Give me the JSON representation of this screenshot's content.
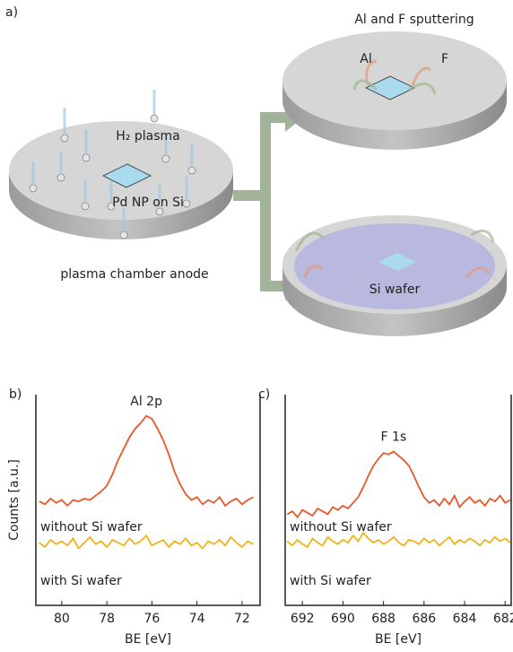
{
  "diagram": {
    "panel": "a)",
    "left_title": "H₂ plasma",
    "sample": "Pd NP on Si",
    "anode": "plasma chamber anode",
    "right_title": "Al and F sputtering",
    "al": "Al",
    "f": "F",
    "wafer": "Si wafer"
  },
  "chart_data": [
    {
      "type": "line",
      "panel": "b)",
      "annotation": "Al 2p",
      "xlabel": "BE [eV]",
      "ylabel": "Counts [a.u.]",
      "x": [
        81,
        80.75,
        80.5,
        80.25,
        80,
        79.75,
        79.5,
        79.25,
        79,
        78.75,
        78.5,
        78.25,
        78,
        77.75,
        77.5,
        77.25,
        77,
        76.75,
        76.5,
        76.25,
        76,
        75.75,
        75.5,
        75.25,
        75,
        74.75,
        74.5,
        74.25,
        74,
        73.75,
        73.5,
        73.25,
        73,
        72.75,
        72.5,
        72.25,
        72,
        71.75,
        71.5
      ],
      "series": [
        {
          "name": "without Si wafer",
          "color": "#e8572a",
          "values": [
            37,
            35,
            39,
            36,
            38,
            34,
            38,
            37,
            39,
            38,
            41,
            44,
            48,
            56,
            66,
            74,
            82,
            88,
            92,
            97,
            95,
            88,
            80,
            70,
            58,
            49,
            42,
            38,
            40,
            35,
            38,
            36,
            40,
            34,
            37,
            39,
            35,
            38,
            40
          ]
        },
        {
          "name": "with Si wafer",
          "color": "#f0b21c",
          "values": [
            8,
            5,
            10,
            7,
            9,
            6,
            11,
            4,
            8,
            12,
            7,
            9,
            5,
            10,
            8,
            6,
            11,
            7,
            9,
            13,
            6,
            8,
            10,
            5,
            9,
            7,
            11,
            6,
            8,
            4,
            9,
            7,
            10,
            6,
            12,
            8,
            5,
            9,
            7
          ]
        }
      ],
      "xlim": [
        81.15,
        71.2
      ],
      "xticks": [
        80,
        78,
        76,
        74,
        72
      ],
      "ylim": [
        -36,
        112
      ]
    },
    {
      "type": "line",
      "panel": "c)",
      "annotation": "F 1s",
      "xlabel": "BE [eV]",
      "x": [
        692.75,
        692.5,
        692.25,
        692,
        691.75,
        691.5,
        691.25,
        691,
        690.75,
        690.5,
        690.25,
        690,
        689.75,
        689.5,
        689.25,
        689,
        688.75,
        688.5,
        688.25,
        688,
        687.75,
        687.5,
        687.25,
        687,
        686.75,
        686.5,
        686.25,
        686,
        685.75,
        685.5,
        685.25,
        685,
        684.75,
        684.5,
        684.25,
        684,
        683.75,
        683.5,
        683.25,
        683,
        682.75,
        682.5,
        682.25,
        682,
        681.75
      ],
      "series": [
        {
          "name": "without Si wafer",
          "color": "#e8572a",
          "values": [
            28,
            30,
            26,
            31,
            29,
            27,
            32,
            30,
            28,
            33,
            31,
            34,
            32,
            36,
            40,
            47,
            55,
            62,
            67,
            71,
            70,
            72,
            69,
            66,
            62,
            55,
            47,
            40,
            36,
            38,
            34,
            39,
            35,
            41,
            33,
            37,
            40,
            36,
            38,
            34,
            39,
            37,
            41,
            36,
            38
          ]
        },
        {
          "name": "with Si wafer",
          "color": "#f0b21c",
          "values": [
            9,
            6,
            10,
            7,
            5,
            11,
            8,
            6,
            12,
            9,
            7,
            10,
            8,
            13,
            9,
            15,
            11,
            8,
            10,
            7,
            9,
            12,
            8,
            6,
            10,
            9,
            7,
            11,
            8,
            10,
            6,
            9,
            12,
            7,
            10,
            8,
            11,
            9,
            6,
            10,
            8,
            12,
            9,
            11,
            8
          ]
        }
      ],
      "xlim": [
        692.85,
        681.7
      ],
      "xticks": [
        692,
        690,
        688,
        686,
        684,
        682
      ],
      "ylim": [
        -36,
        112
      ]
    }
  ]
}
